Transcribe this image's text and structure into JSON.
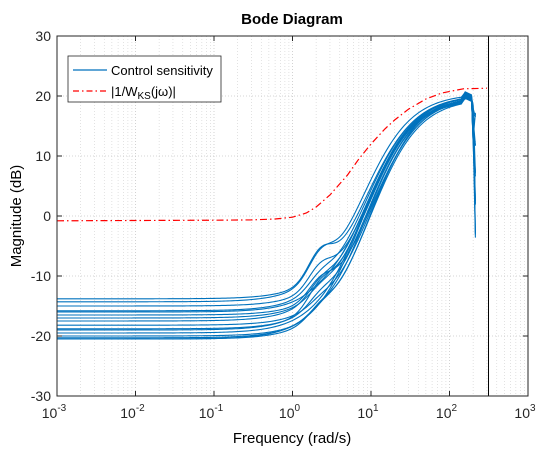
{
  "chart_data": {
    "type": "line",
    "title": "Bode Diagram",
    "xlabel": "Frequency  (rad/s)",
    "ylabel": "Magnitude (dB)",
    "xscale": "log",
    "xlim": [
      0.001,
      1000
    ],
    "ylim": [
      -30,
      30
    ],
    "x_ticks": [
      0.001,
      0.01,
      0.1,
      1,
      10,
      100,
      1000
    ],
    "x_tick_labels": [
      {
        "base": "10",
        "exp": "-3"
      },
      {
        "base": "10",
        "exp": "-2"
      },
      {
        "base": "10",
        "exp": "-1"
      },
      {
        "base": "10",
        "exp": "0"
      },
      {
        "base": "10",
        "exp": "1"
      },
      {
        "base": "10",
        "exp": "2"
      },
      {
        "base": "10",
        "exp": "3"
      }
    ],
    "y_ticks": [
      -30,
      -20,
      -10,
      0,
      10,
      20,
      30
    ],
    "y_tick_labels": [
      "-30",
      "-20",
      "-10",
      "0",
      "10",
      "20",
      "30"
    ],
    "grid": true,
    "minor_grid_x": true,
    "legend_position": "top-left",
    "vertical_line_x": 314,
    "legend": [
      {
        "label": "Control sensitivity",
        "style": "solid",
        "color": "#0072BD"
      },
      {
        "label_parts": [
          "|1/W",
          "KS",
          "(jω)|"
        ],
        "style": "dash-dot",
        "color": "#FF0000"
      }
    ],
    "weight_curve": {
      "name_parts": [
        "|1/W",
        "KS",
        "(jω)|"
      ],
      "color": "#FF0000",
      "style": "dash-dot",
      "points": [
        [
          0.001,
          -0.8
        ],
        [
          0.01,
          -0.75
        ],
        [
          0.1,
          -0.7
        ],
        [
          0.3,
          -0.65
        ],
        [
          0.6,
          -0.5
        ],
        [
          1,
          -0.2
        ],
        [
          1.5,
          0.5
        ],
        [
          2,
          1.5
        ],
        [
          3,
          3.5
        ],
        [
          5,
          6.8
        ],
        [
          7,
          9.5
        ],
        [
          10,
          12
        ],
        [
          15,
          14.5
        ],
        [
          20,
          16
        ],
        [
          30,
          17.8
        ],
        [
          50,
          19.5
        ],
        [
          80,
          20.5
        ],
        [
          150,
          21.2
        ],
        [
          300,
          21.3
        ]
      ]
    },
    "sensitivity_curves": {
      "name": "Control sensitivity",
      "color": "#0072BD",
      "members": [
        {
          "low": -20.5,
          "bump": 0.0,
          "hi": 19.5
        },
        {
          "low": -20.3,
          "bump": 0.5,
          "hi": 19.8
        },
        {
          "low": -20.0,
          "bump": 1.0,
          "hi": 19.6
        },
        {
          "low": -19.5,
          "bump": 0.0,
          "hi": 20.1
        },
        {
          "low": -18.8,
          "bump": 1.5,
          "hi": 19.9
        },
        {
          "low": -18.2,
          "bump": 0.8,
          "hi": 20.0
        },
        {
          "low": -17.5,
          "bump": 2.0,
          "hi": 19.7
        },
        {
          "low": -17.0,
          "bump": 1.2,
          "hi": 20.3
        },
        {
          "low": -16.5,
          "bump": 2.5,
          "hi": 19.9
        },
        {
          "low": -15.8,
          "bump": 1.8,
          "hi": 20.2
        },
        {
          "low": -15.0,
          "bump": 3.0,
          "hi": 20.0
        },
        {
          "low": -14.3,
          "bump": 3.5,
          "hi": 20.4
        },
        {
          "low": -13.8,
          "bump": 4.0,
          "hi": 20.1
        },
        {
          "low": -20.5,
          "bump": 1.5,
          "hi": 20.5
        },
        {
          "low": -19.0,
          "bump": 2.8,
          "hi": 19.4
        },
        {
          "low": -16.0,
          "bump": 0.4,
          "hi": 20.2
        }
      ]
    }
  }
}
